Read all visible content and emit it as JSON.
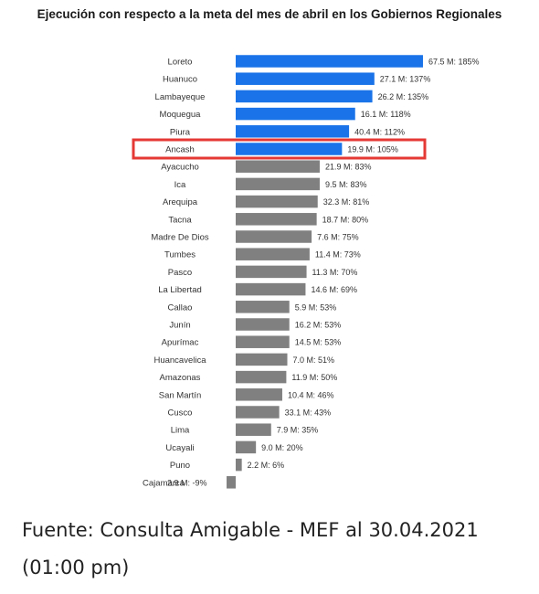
{
  "title": "Ejecución con respecto a la meta del mes de abril en los Gobiernos Regionales",
  "source": "Fuente: Consulta Amigable - MEF al 30.04.2021 (01:00 pm)",
  "colors": {
    "highlight": "#1a73e8",
    "default": "#808080",
    "box": "#e53935"
  },
  "chart_data": {
    "type": "bar",
    "orientation": "horizontal",
    "title": "Ejecución con respecto a la meta del mes de abril en los Gobiernos Regionales",
    "xlabel": "",
    "ylabel": "",
    "grid": false,
    "legend": false,
    "highlighted_box": "Ancash",
    "categories": [
      "Loreto",
      "Huanuco",
      "Lambayeque",
      "Moquegua",
      "Piura",
      "Ancash",
      "Ayacucho",
      "Ica",
      "Arequipa",
      "Tacna",
      "Madre De Dios",
      "Tumbes",
      "Pasco",
      "La Libertad",
      "Callao",
      "Junín",
      "Apurímac",
      "Huancavelica",
      "Amazonas",
      "San Martín",
      "Cusco",
      "Lima",
      "Ucayali",
      "Puno",
      "Cajamarca"
    ],
    "values": [
      185,
      137,
      135,
      118,
      112,
      105,
      83,
      83,
      81,
      80,
      75,
      73,
      70,
      69,
      53,
      53,
      53,
      51,
      50,
      46,
      43,
      35,
      20,
      6,
      -9
    ],
    "labels": [
      "67.5 M: 185%",
      "27.1 M: 137%",
      "26.2 M: 135%",
      "16.1 M: 118%",
      "40.4 M: 112%",
      "19.9 M: 105%",
      "21.9 M: 83%",
      "9.5 M: 83%",
      "32.3 M: 81%",
      "18.7 M: 80%",
      "7.6 M: 75%",
      "11.4 M: 73%",
      "11.3 M: 70%",
      "14.6 M: 69%",
      "5.9 M: 53%",
      "16.2 M: 53%",
      "14.5 M: 53%",
      "7.0 M: 51%",
      "11.9 M: 50%",
      "10.4 M: 46%",
      "33.1 M: 43%",
      "7.9 M: 35%",
      "9.0 M: 20%",
      "2.2 M: 6%",
      "2.9 M: -9%"
    ],
    "bar_colors": [
      "blue",
      "blue",
      "blue",
      "blue",
      "blue",
      "blue",
      "gray",
      "gray",
      "gray",
      "gray",
      "gray",
      "gray",
      "gray",
      "gray",
      "gray",
      "gray",
      "gray",
      "gray",
      "gray",
      "gray",
      "gray",
      "gray",
      "gray",
      "gray",
      "gray"
    ]
  }
}
